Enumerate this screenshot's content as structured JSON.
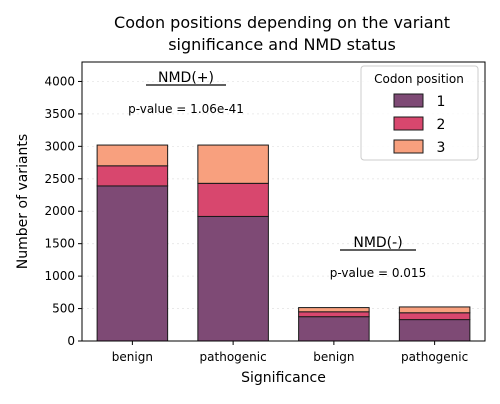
{
  "chart_data": {
    "type": "bar",
    "stacked": true,
    "title": "Codon positions depending on the variant\nsignificance and NMD status",
    "xlabel": "Significance",
    "ylabel": "Number of variants",
    "categories": [
      "benign",
      "pathogenic",
      "benign",
      "pathogenic"
    ],
    "ylim": [
      0,
      4300
    ],
    "yticks": [
      0,
      500,
      1000,
      1500,
      2000,
      2500,
      3000,
      3500,
      4000
    ],
    "grid": true,
    "legend": {
      "title": "Codon position",
      "placement": "top-right"
    },
    "series": [
      {
        "name": "1",
        "color": "#7e4a75",
        "values": [
          2390,
          1920,
          375,
          330
        ]
      },
      {
        "name": "2",
        "color": "#d8476e",
        "values": [
          310,
          510,
          75,
          105
        ]
      },
      {
        "name": "3",
        "color": "#f8a07e",
        "values": [
          320,
          590,
          65,
          90
        ]
      }
    ],
    "annotations": [
      {
        "label": "NMD(+)",
        "pvalue": "p-value = 1.06e-41",
        "group": [
          0,
          1
        ],
        "underline": true
      },
      {
        "label": "NMD(-)",
        "pvalue": "p-value = 0.015",
        "group": [
          2,
          3
        ],
        "underline": true
      }
    ]
  }
}
